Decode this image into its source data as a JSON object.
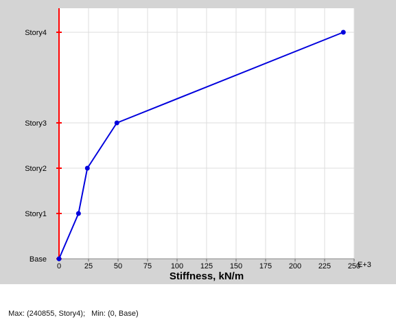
{
  "chart_data": {
    "type": "line",
    "xlabel": "Stiffness, kN/m",
    "x_exponent_label": "E+3",
    "x_ticks": [
      0,
      25,
      50,
      75,
      100,
      125,
      150,
      175,
      200,
      225,
      250
    ],
    "xlim": [
      0,
      250
    ],
    "y_categories": [
      "Base",
      "Story1",
      "Story2",
      "Story3",
      "Story4"
    ],
    "y_levels": [
      0,
      1,
      2,
      3,
      5
    ],
    "series": [
      {
        "color": "#0000dd",
        "x": [
          0,
          16.5,
          24,
          49,
          240.855
        ],
        "y": [
          "Base",
          "Story1",
          "Story2",
          "Story3",
          "Story4"
        ]
      }
    ],
    "axis_line_color": "#ff0000",
    "plot_background": "#ffffff",
    "outer_background": "#d4d4d4",
    "grid": true
  },
  "status": {
    "text": "Max: (240855, Story4);   Min: (0, Base)"
  }
}
